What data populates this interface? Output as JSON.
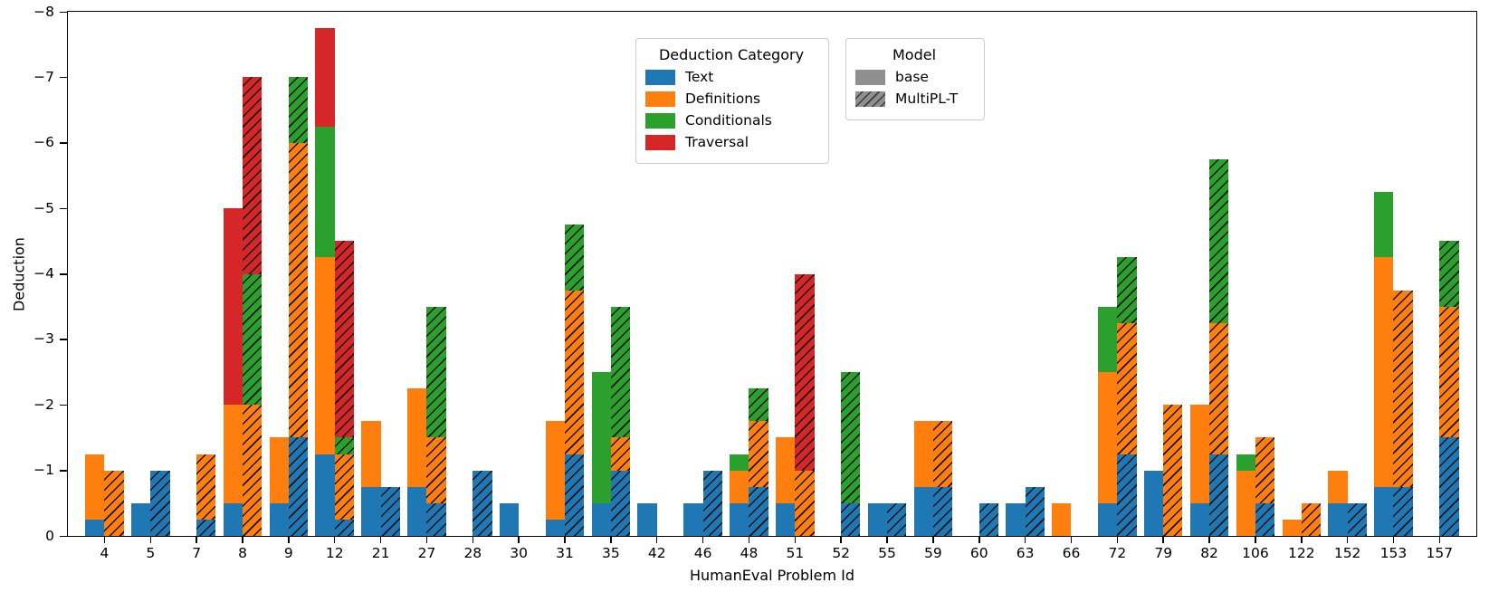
{
  "chart_data": {
    "type": "bar",
    "stacked": true,
    "grouped_by_model": true,
    "title": "",
    "xlabel": "HumanEval Problem Id",
    "ylabel": "Deduction",
    "grid": false,
    "y_axis": {
      "label": "Deduction",
      "inverted": true,
      "min": 0,
      "max": -8,
      "max_abs": 8,
      "tick_values": [
        0,
        1,
        2,
        3,
        4,
        5,
        6,
        7,
        8
      ],
      "tick_labels": [
        "0",
        "−1",
        "−2",
        "−3",
        "−4",
        "−5",
        "−6",
        "−7",
        "−8"
      ]
    },
    "x_axis": {
      "label": "HumanEval Problem Id"
    },
    "categories": [
      "4",
      "5",
      "7",
      "8",
      "9",
      "12",
      "21",
      "27",
      "28",
      "30",
      "31",
      "35",
      "42",
      "46",
      "48",
      "51",
      "52",
      "55",
      "59",
      "60",
      "63",
      "66",
      "72",
      "79",
      "82",
      "106",
      "122",
      "152",
      "153",
      "157"
    ],
    "deduction_categories": [
      {
        "label": "Text",
        "color": "#1f77b4"
      },
      {
        "label": "Definitions",
        "color": "#ff7f0e"
      },
      {
        "label": "Conditionals",
        "color": "#2ca02c"
      },
      {
        "label": "Traversal",
        "color": "#d62728"
      }
    ],
    "series": [
      {
        "model": "base",
        "hatched": false,
        "stacks": {
          "Text": [
            0.25,
            0.5,
            0,
            0.5,
            0.5,
            1.25,
            0.75,
            0.75,
            0,
            0.5,
            0.25,
            0.5,
            0.5,
            0.5,
            0.5,
            0.5,
            0,
            0.5,
            0.75,
            0,
            0.5,
            0,
            0.5,
            1,
            0.5,
            0,
            0,
            0.5,
            0.75,
            0
          ],
          "Definitions": [
            1,
            0,
            0,
            1.5,
            1,
            3,
            1,
            1.5,
            0,
            0,
            1.5,
            0,
            0,
            0,
            0.5,
            1,
            0,
            0,
            1,
            0,
            0,
            0.5,
            2,
            0,
            1.5,
            1,
            0.25,
            0.5,
            3.5,
            0
          ],
          "Conditionals": [
            0,
            0,
            0,
            0,
            0,
            2,
            0,
            0,
            0,
            0,
            0,
            2,
            0,
            0,
            0.25,
            0,
            0,
            0,
            0,
            0,
            0,
            0,
            1,
            0,
            0,
            0.25,
            0,
            0,
            1,
            0
          ],
          "Traversal": [
            0,
            0,
            0,
            3,
            0,
            1.5,
            0,
            0,
            0,
            0,
            0,
            0,
            0,
            0,
            0,
            0,
            0,
            0,
            0,
            0,
            0,
            0,
            0,
            0,
            0,
            0,
            0,
            0,
            0,
            0
          ]
        }
      },
      {
        "model": "MultiPL-T",
        "hatched": true,
        "stacks": {
          "Text": [
            0,
            1,
            0.25,
            0,
            1.5,
            0.25,
            0.75,
            0.5,
            1,
            0,
            1.25,
            1,
            0,
            1,
            0.75,
            0,
            0.5,
            0.5,
            0.75,
            0.5,
            0.75,
            0,
            1.25,
            0,
            1.25,
            0.5,
            0,
            0.5,
            0.75,
            1.5
          ],
          "Definitions": [
            1,
            0,
            1,
            2,
            4.5,
            1,
            0,
            1,
            0,
            0,
            2.5,
            0.5,
            0,
            0,
            1,
            1,
            0,
            0,
            1,
            0,
            0,
            0,
            2,
            2,
            2,
            1,
            0.5,
            0,
            3,
            2
          ],
          "Conditionals": [
            0,
            0,
            0,
            2,
            1,
            0.25,
            0,
            2,
            0,
            0,
            1,
            2,
            0,
            0,
            0.5,
            0,
            2,
            0,
            0,
            0,
            0,
            0,
            1,
            0,
            2.5,
            0,
            0,
            0,
            0,
            1
          ],
          "Traversal": [
            0,
            0,
            0,
            3,
            0,
            3,
            0,
            0,
            0,
            0,
            0,
            0,
            0,
            0,
            0,
            3,
            0,
            0,
            0,
            0,
            0,
            0,
            0,
            0,
            0,
            0,
            0,
            0,
            0,
            0
          ]
        }
      }
    ],
    "legend_category": {
      "title": "Deduction Category",
      "items": [
        "Text",
        "Definitions",
        "Conditionals",
        "Traversal"
      ]
    },
    "legend_model": {
      "title": "Model",
      "swatch_color": "#8f8f8f",
      "items": [
        {
          "label": "base",
          "hatched": false
        },
        {
          "label": "MultiPL-T",
          "hatched": true
        }
      ]
    }
  }
}
